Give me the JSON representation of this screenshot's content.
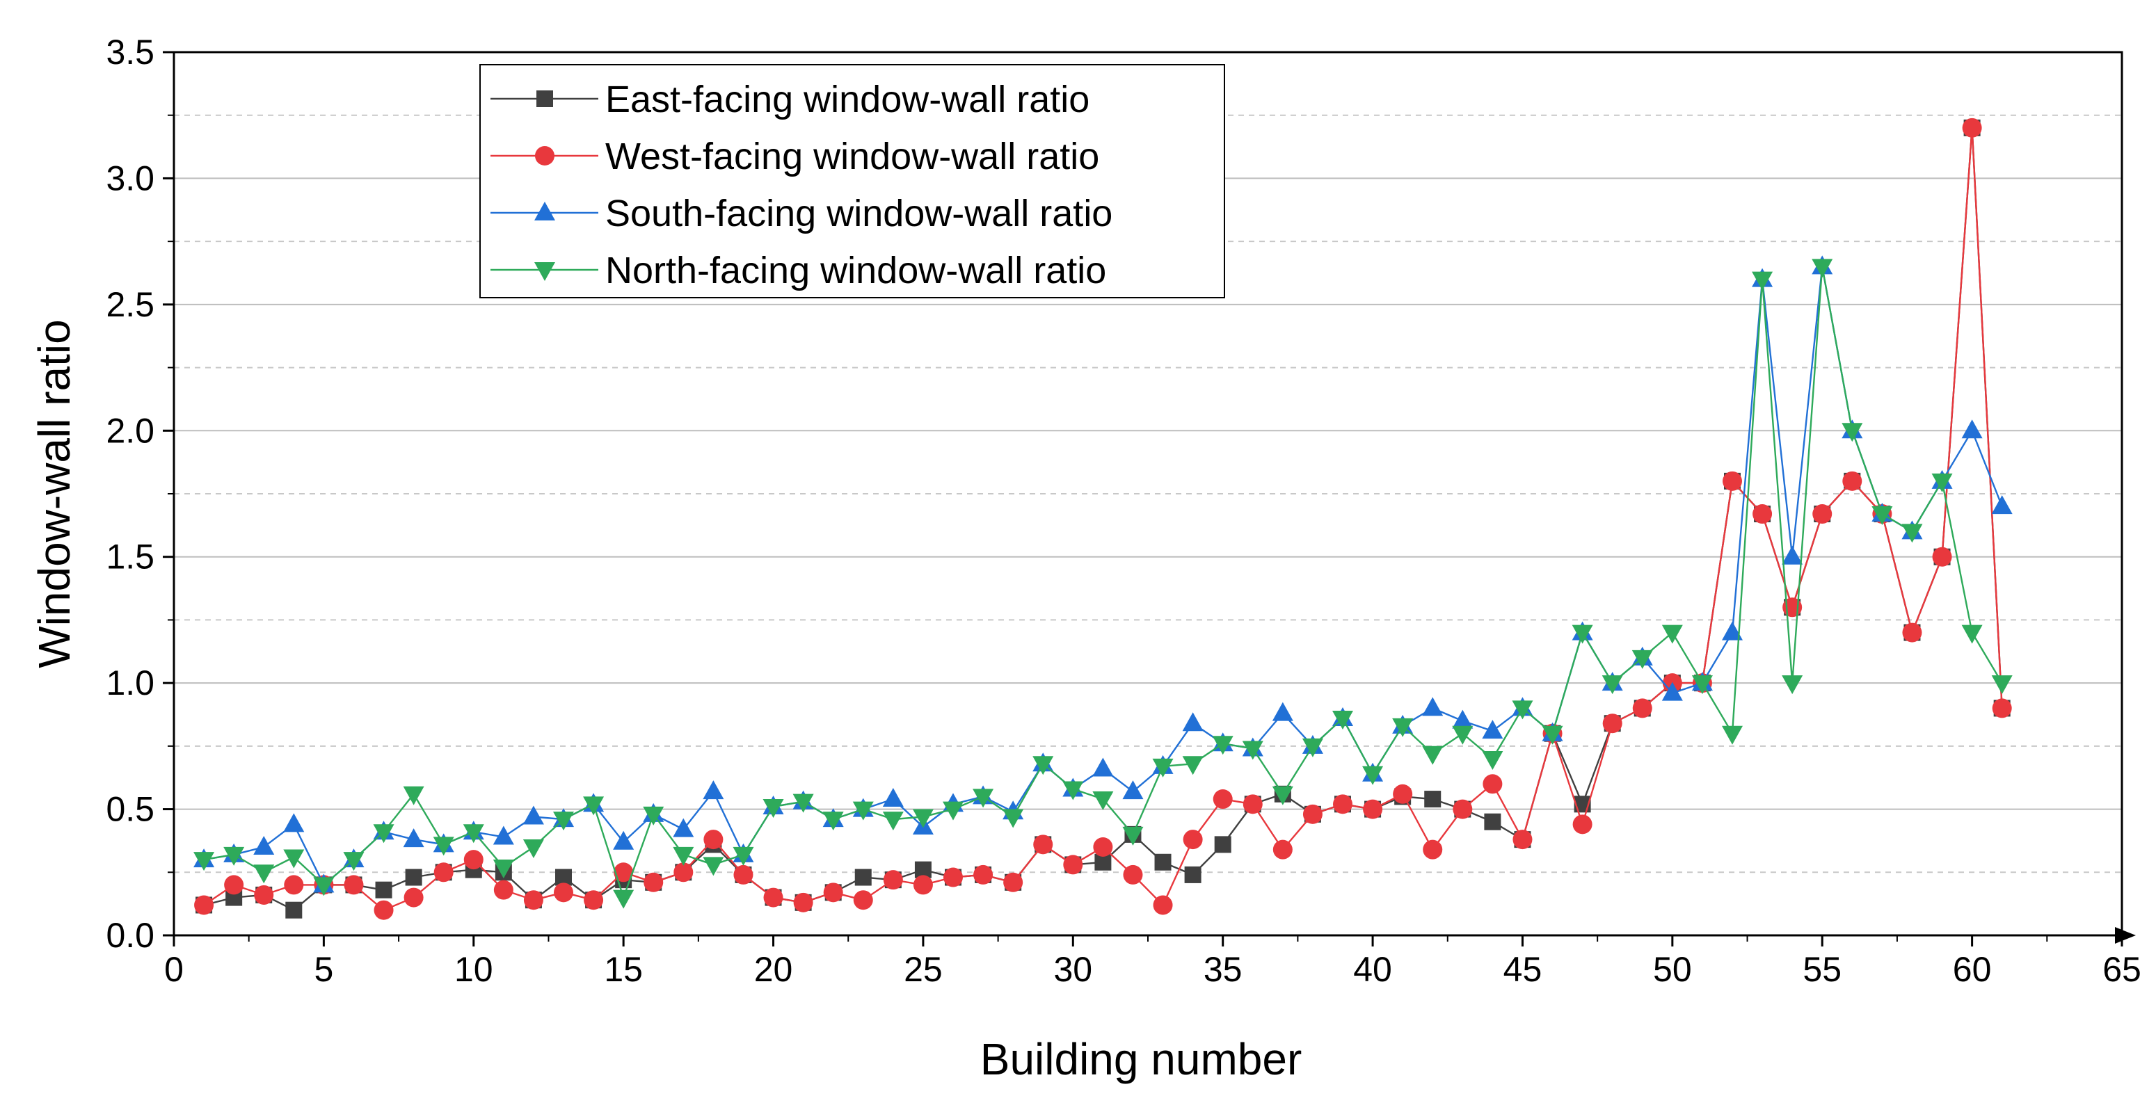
{
  "chart_data": {
    "type": "line",
    "title": "",
    "xlabel": "Building number",
    "ylabel": "Window-wall ratio",
    "xlim": [
      0,
      65
    ],
    "ylim": [
      0,
      3.5
    ],
    "xticks": [
      "0",
      "5",
      "10",
      "15",
      "20",
      "25",
      "30",
      "35",
      "40",
      "45",
      "50",
      "55",
      "60",
      "65"
    ],
    "yticks": [
      "0.0",
      "0.5",
      "1.0",
      "1.5",
      "2.0",
      "2.5",
      "3.0",
      "3.5"
    ],
    "grid": true,
    "legend_position": "top-left",
    "x": [
      1,
      2,
      3,
      4,
      5,
      6,
      7,
      8,
      9,
      10,
      11,
      12,
      13,
      14,
      15,
      16,
      17,
      18,
      19,
      20,
      21,
      22,
      23,
      24,
      25,
      26,
      27,
      28,
      29,
      30,
      31,
      32,
      33,
      34,
      35,
      36,
      37,
      38,
      39,
      40,
      41,
      42,
      43,
      44,
      45,
      46,
      47,
      48,
      49,
      50,
      51,
      52,
      53,
      54,
      55,
      56,
      57,
      58,
      59,
      60,
      61
    ],
    "series": [
      {
        "name": "East-facing window-wall ratio",
        "color": "#404040",
        "marker": "square",
        "values": [
          0.12,
          0.15,
          0.16,
          0.1,
          0.2,
          0.2,
          0.18,
          0.23,
          0.25,
          0.26,
          0.25,
          0.14,
          0.23,
          0.14,
          0.22,
          0.21,
          0.25,
          0.36,
          0.24,
          0.15,
          0.13,
          0.17,
          0.23,
          0.22,
          0.26,
          0.23,
          0.24,
          0.21,
          0.36,
          0.28,
          0.29,
          0.4,
          0.29,
          0.24,
          0.36,
          0.52,
          0.56,
          0.48,
          0.52,
          0.5,
          0.55,
          0.54,
          0.5,
          0.45,
          0.38,
          0.8,
          0.52,
          0.84,
          0.9,
          1.0,
          1.0,
          1.8,
          1.67,
          1.3,
          1.67,
          1.8,
          1.67,
          1.2,
          1.5,
          3.2,
          0.9
        ]
      },
      {
        "name": "West-facing window-wall ratio",
        "color": "#e8383d",
        "marker": "circle",
        "values": [
          0.12,
          0.2,
          0.16,
          0.2,
          0.2,
          0.2,
          0.1,
          0.15,
          0.25,
          0.3,
          0.18,
          0.14,
          0.17,
          0.14,
          0.25,
          0.21,
          0.25,
          0.38,
          0.24,
          0.15,
          0.13,
          0.17,
          0.14,
          0.22,
          0.2,
          0.23,
          0.24,
          0.21,
          0.36,
          0.28,
          0.35,
          0.24,
          0.12,
          0.38,
          0.54,
          0.52,
          0.34,
          0.48,
          0.52,
          0.5,
          0.56,
          0.34,
          0.5,
          0.6,
          0.38,
          0.8,
          0.44,
          0.84,
          0.9,
          1.0,
          1.0,
          1.8,
          1.67,
          1.3,
          1.67,
          1.8,
          1.67,
          1.2,
          1.5,
          3.2,
          0.9
        ]
      },
      {
        "name": "South-facing window-wall ratio",
        "color": "#2170d6",
        "marker": "triangle-up",
        "values": [
          0.3,
          0.32,
          0.35,
          0.44,
          0.2,
          0.3,
          0.41,
          0.38,
          0.36,
          0.41,
          0.39,
          0.47,
          0.46,
          0.52,
          0.37,
          0.48,
          0.42,
          0.57,
          0.32,
          0.51,
          0.53,
          0.46,
          0.5,
          0.54,
          0.43,
          0.52,
          0.55,
          0.49,
          0.68,
          0.58,
          0.66,
          0.57,
          0.67,
          0.84,
          0.76,
          0.74,
          0.88,
          0.75,
          0.86,
          0.64,
          0.83,
          0.9,
          0.85,
          0.81,
          0.9,
          0.8,
          1.2,
          1.0,
          1.1,
          0.96,
          1.0,
          1.2,
          2.6,
          1.5,
          2.65,
          2.0,
          1.67,
          1.6,
          1.8,
          2.0,
          1.7
        ]
      },
      {
        "name": "North-facing window-wall ratio",
        "color": "#2eaa5a",
        "marker": "triangle-down",
        "values": [
          0.3,
          0.32,
          0.25,
          0.31,
          0.2,
          0.3,
          0.41,
          0.56,
          0.36,
          0.41,
          0.27,
          0.35,
          0.46,
          0.52,
          0.15,
          0.48,
          0.32,
          0.28,
          0.32,
          0.51,
          0.53,
          0.46,
          0.5,
          0.46,
          0.47,
          0.5,
          0.55,
          0.47,
          0.68,
          0.58,
          0.54,
          0.4,
          0.67,
          0.68,
          0.76,
          0.74,
          0.56,
          0.75,
          0.86,
          0.64,
          0.83,
          0.72,
          0.8,
          0.7,
          0.9,
          0.8,
          1.2,
          1.0,
          1.1,
          1.2,
          1.0,
          0.8,
          2.6,
          1.0,
          2.65,
          2.0,
          1.67,
          1.6,
          1.8,
          1.2,
          1.0
        ]
      }
    ]
  }
}
